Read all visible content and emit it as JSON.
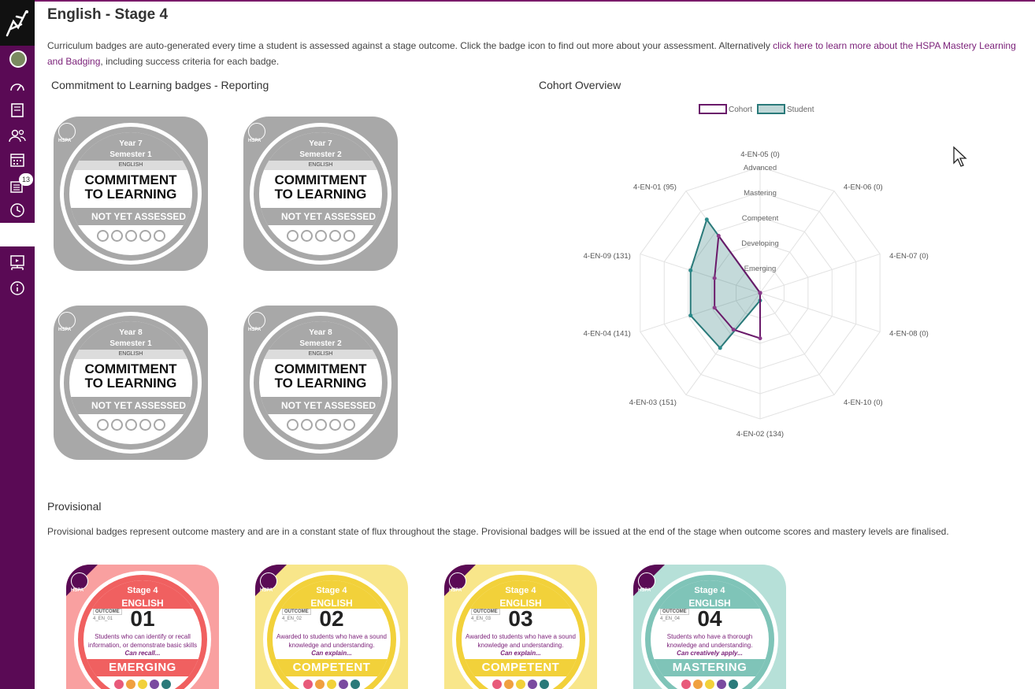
{
  "page": {
    "title": "English - Stage 4",
    "intro_text": "Curriculum badges are auto-generated every time a student is assessed against a stage outcome. Click the badge icon to find out more about your assessment. Alternatively ",
    "intro_link": "click here to learn more about the HSPA Mastery Learning and Badging",
    "intro_tail": ", including success criteria for each badge."
  },
  "sidebar": {
    "notification_count": "13",
    "icons": [
      "logo-icon",
      "avatar",
      "dashboard-icon",
      "book-icon",
      "people-icon",
      "calendar-icon",
      "notifications-icon",
      "clock-icon",
      "presentation-icon",
      "info-icon"
    ]
  },
  "commitment": {
    "section_title": "Commitment to Learning badges - Reporting",
    "hspa": "HSPA",
    "badges": [
      {
        "year": "Year 7",
        "semester": "Semester 1",
        "subject": "ENGLISH",
        "line1": "COMMITMENT",
        "line2": "TO LEARNING",
        "status": "NOT YET ASSESSED"
      },
      {
        "year": "Year 7",
        "semester": "Semester 2",
        "subject": "ENGLISH",
        "line1": "COMMITMENT",
        "line2": "TO LEARNING",
        "status": "NOT YET ASSESSED"
      },
      {
        "year": "Year 8",
        "semester": "Semester 1",
        "subject": "ENGLISH",
        "line1": "COMMITMENT",
        "line2": "TO LEARNING",
        "status": "NOT YET ASSESSED"
      },
      {
        "year": "Year 8",
        "semester": "Semester 2",
        "subject": "ENGLISH",
        "line1": "COMMITMENT",
        "line2": "TO LEARNING",
        "status": "NOT YET ASSESSED"
      }
    ]
  },
  "chart_data": {
    "type": "radar",
    "title": "Cohort Overview",
    "legend": [
      {
        "name": "Cohort",
        "color": "#6a1a6a"
      },
      {
        "name": "Student",
        "color": "#2a7a7a"
      }
    ],
    "legend_position": "top",
    "axes": [
      "4-EN-05 (0)",
      "4-EN-06 (0)",
      "4-EN-07 (0)",
      "4-EN-08 (0)",
      "4-EN-10 (0)",
      "4-EN-02 (134)",
      "4-EN-03 (151)",
      "4-EN-04 (141)",
      "4-EN-09 (131)",
      "4-EN-01 (95)"
    ],
    "levels": [
      "Emerging",
      "Developing",
      "Competent",
      "Mastering",
      "Advanced"
    ],
    "rmax": 5,
    "series": [
      {
        "name": "Cohort",
        "values": [
          0,
          0,
          0,
          0,
          0,
          1.8,
          1.8,
          1.9,
          1.9,
          2.8
        ]
      },
      {
        "name": "Student",
        "values": [
          0,
          0,
          0,
          0,
          0,
          0.3,
          2.7,
          2.9,
          2.9,
          3.6
        ]
      }
    ]
  },
  "provisional": {
    "section_title": "Provisional",
    "text": "Provisional badges represent outcome mastery and are in a constant state of flux throughout the stage. Provisional badges will be issued at the end of the stage when outcome scores and mastery levels are finalised.",
    "outcome_label": "OUTCOME",
    "badges": [
      {
        "stage": "Stage 4",
        "subject": "ENGLISH",
        "code": "4_EN_01",
        "number": "01",
        "desc": "Students who can identify or recall information, or demonstrate basic skills",
        "can": "Can recall...",
        "level": "EMERGING",
        "color": "#f06060",
        "light": "#f9a0a0"
      },
      {
        "stage": "Stage 4",
        "subject": "ENGLISH",
        "code": "4_EN_02",
        "number": "02",
        "desc": "Awarded to students who have a sound knowledge and understanding.",
        "can": "Can explain...",
        "level": "COMPETENT",
        "color": "#f2d13a",
        "light": "#f8e68a"
      },
      {
        "stage": "Stage 4",
        "subject": "ENGLISH",
        "code": "4_EN_03",
        "number": "03",
        "desc": "Awarded to students who have a sound knowledge and understanding.",
        "can": "Can explain...",
        "level": "COMPETENT",
        "color": "#f2d13a",
        "light": "#f8e68a"
      },
      {
        "stage": "Stage 4",
        "subject": "ENGLISH",
        "code": "4_EN_04",
        "number": "04",
        "desc": "Students who have a thorough knowledge and understanding.",
        "can": "Can creatively apply...",
        "level": "MASTERING",
        "color": "#7fc4b8",
        "light": "#b6e0d8"
      }
    ]
  }
}
